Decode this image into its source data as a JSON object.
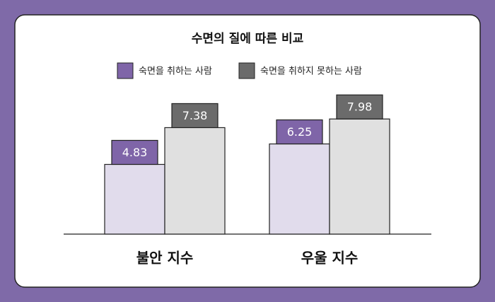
{
  "chart_data": {
    "type": "bar",
    "title": "수면의 질에 따른 비교",
    "categories": [
      "불안 지수",
      "우울 지수"
    ],
    "series": [
      {
        "name": "숙면을 취하는 사람",
        "color": "#7f65a8",
        "bar_color": "#e1dcec",
        "values": [
          4.83,
          6.25
        ]
      },
      {
        "name": "숙면을 취하지 못하는 사람",
        "color": "#6b6b6b",
        "bar_color": "#e0e0e0",
        "values": [
          7.38,
          7.98
        ]
      }
    ]
  }
}
